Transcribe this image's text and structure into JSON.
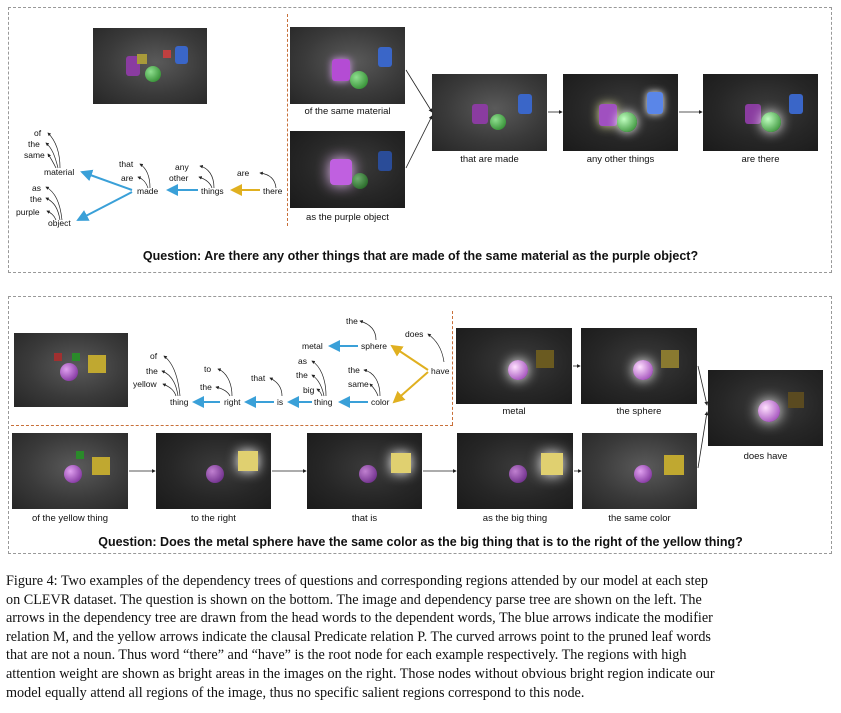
{
  "example1": {
    "question": "Question: Are there any other things that are made of the same material as the purple object?",
    "tree_words": {
      "of": "of",
      "the": "the",
      "same": "same",
      "material": "material",
      "as": "as",
      "the2": "the",
      "purple": "purple",
      "object": "object",
      "that": "that",
      "are": "are",
      "made": "made",
      "any": "any",
      "other": "other",
      "things": "things",
      "are2": "are",
      "there": "there"
    },
    "captions": {
      "of_same_material": "of the same material",
      "as_purple_object": "as the purple object",
      "that_are_made": "that are made",
      "any_other_things": "any other things",
      "are_there": "are there"
    }
  },
  "example2": {
    "question": "Question: Does the metal sphere have the same color as the big thing that is to the right of the yellow thing?",
    "tree_words": {
      "of": "of",
      "the": "the",
      "yellow": "yellow",
      "thing": "thing",
      "to": "to",
      "the2": "the",
      "right": "right",
      "that": "that",
      "is": "is",
      "as": "as",
      "the3": "the",
      "big": "big",
      "thing2": "thing",
      "the4": "the",
      "same": "same",
      "color": "color",
      "metal": "metal",
      "sphere": "sphere",
      "the5": "the",
      "does": "does",
      "have": "have"
    },
    "captions": {
      "metal": "metal",
      "the_sphere": "the sphere",
      "does_have": "does have",
      "of_yellow_thing": "of the yellow thing",
      "to_the_right": "to the right",
      "that_is": "that is",
      "as_big_thing": "as the big thing",
      "same_color": "the same color"
    }
  },
  "figure_caption": {
    "line1": "Figure 4: Two examples of the dependency trees of questions and corresponding regions attended by our model at each step",
    "line2": "on CLEVR dataset. The question is shown on the bottom. The image and dependency parse tree are shown on the left. The",
    "line3": "arrows in the dependency tree are drawn from the head words to the dependent words, The blue arrows indicate the modifier",
    "line4": "relation M, and the yellow arrows indicate the clausal Predicate relation P. The curved arrows point to the pruned leaf words",
    "line5": "that are not a noun. Thus word “there” and “have” is the root node for each example respectively. The regions with high",
    "line6": "attention weight are shown as bright areas in the images on the right. Those nodes without obvious bright region indicate our",
    "line7": "model equally attend all regions of the image, thus no specific salient regions correspond to this node."
  },
  "colors": {
    "modifier_arrow": "#3aa0d8",
    "predicate_arrow": "#e0b020",
    "divider": "#c8703a"
  }
}
